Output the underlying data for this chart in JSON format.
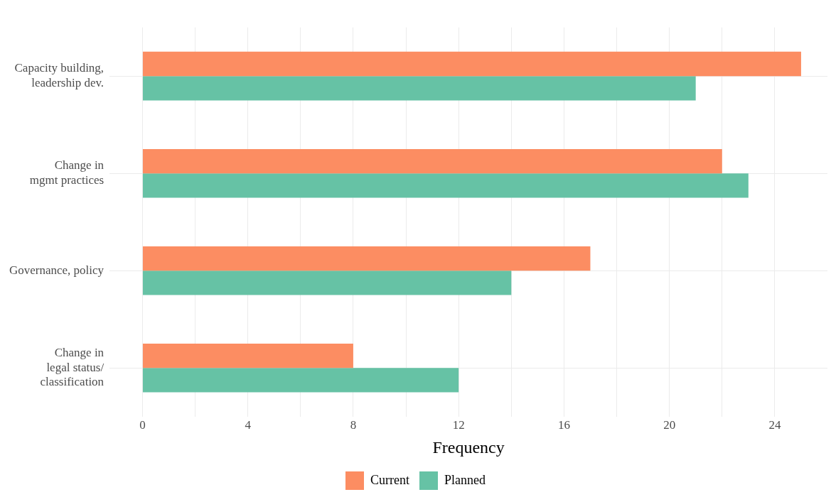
{
  "chart_data": {
    "type": "bar",
    "orientation": "horizontal",
    "xlabel": "Frequency",
    "categories": [
      "Capacity building,\nleadership dev.",
      "Change in\nmgmt practices",
      "Governance, policy",
      "Change in\nlegal status/\nclassification"
    ],
    "series": [
      {
        "name": "Current",
        "color": "#fc8d62",
        "values": [
          25,
          22,
          17,
          8
        ]
      },
      {
        "name": "Planned",
        "color": "#66c2a5",
        "values": [
          21,
          23,
          14,
          12
        ]
      }
    ],
    "xlim": [
      -1.25,
      26
    ],
    "xticks": [
      0,
      {
        "value": 2,
        "label": null
      },
      4,
      {
        "value": 6,
        "label": null
      },
      8,
      {
        "value": 10,
        "label": null
      },
      12,
      {
        "value": 14,
        "label": null
      },
      16,
      {
        "value": 18,
        "label": null
      },
      20,
      {
        "value": 22,
        "label": null
      },
      24
    ],
    "grid": true,
    "legend": "bottom"
  }
}
